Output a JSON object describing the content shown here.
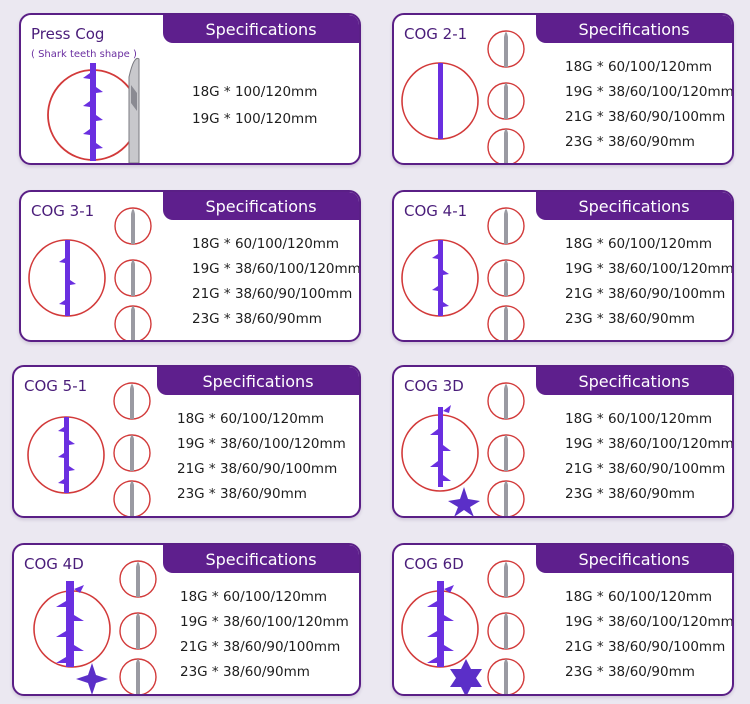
{
  "header_label": "Specifications",
  "cards": [
    {
      "title": "Press Cog",
      "subtitle": "( Shark teeth shape )",
      "specs": [
        "18G * 100/120mm",
        "19G * 100/120mm"
      ]
    },
    {
      "title": "COG 2-1",
      "specs": [
        "18G * 60/100/120mm",
        "19G * 38/60/100/120mm",
        "21G * 38/60/90/100mm",
        "23G * 38/60/90mm"
      ]
    },
    {
      "title": "COG 3-1",
      "specs": [
        "18G * 60/100/120mm",
        "19G * 38/60/100/120mm",
        "21G * 38/60/90/100mm",
        "23G * 38/60/90mm"
      ]
    },
    {
      "title": "COG 4-1",
      "specs": [
        "18G * 60/100/120mm",
        "19G * 38/60/100/120mm",
        "21G * 38/60/90/100mm",
        "23G * 38/60/90mm"
      ]
    },
    {
      "title": "COG 5-1",
      "specs": [
        "18G * 60/100/120mm",
        "19G * 38/60/100/120mm",
        "21G * 38/60/90/100mm",
        "23G * 38/60/90mm"
      ]
    },
    {
      "title": "COG 3D",
      "specs": [
        "18G * 60/100/120mm",
        "19G * 38/60/100/120mm",
        "21G * 38/60/90/100mm",
        "23G * 38/60/90mm"
      ]
    },
    {
      "title": "COG 4D",
      "specs": [
        "18G * 60/100/120mm",
        "19G * 38/60/100/120mm",
        "21G * 38/60/90/100mm",
        "23G * 38/60/90mm"
      ]
    },
    {
      "title": "COG 6D",
      "specs": [
        "18G * 60/100/120mm",
        "19G * 38/60/100/120mm",
        "21G * 38/60/90/100mm",
        "23G * 38/60/90mm"
      ]
    }
  ],
  "colors": {
    "accent": "#5e1f8d",
    "thread": "#6a2fe0",
    "circle": "#d23a3a",
    "background": "#ebe8f1"
  }
}
